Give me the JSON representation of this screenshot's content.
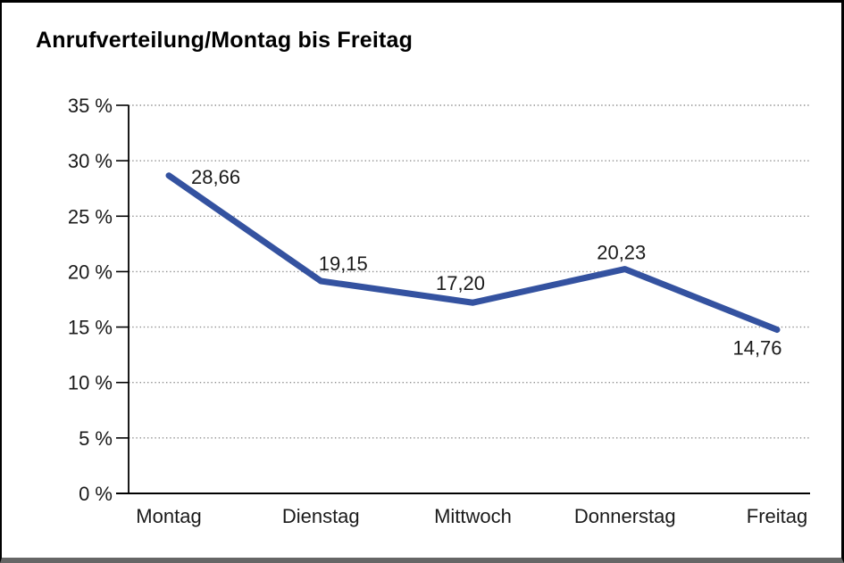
{
  "title": "Anrufverteilung/Montag bis Freitag",
  "chart_data": {
    "type": "line",
    "title": "Anrufverteilung/Montag bis Freitag",
    "categories": [
      "Montag",
      "Dienstag",
      "Mittwoch",
      "Donnerstag",
      "Freitag"
    ],
    "values": [
      28.66,
      19.15,
      17.2,
      20.23,
      14.76
    ],
    "value_labels": [
      "28,66",
      "19,15",
      "17,20",
      "20,23",
      "14,76"
    ],
    "xlabel": "",
    "ylabel": "",
    "ylim": [
      0,
      35
    ],
    "ytick_step": 5,
    "ytick_labels": [
      "0 %",
      "5 %",
      "10 %",
      "15 %",
      "20 %",
      "25 %",
      "30 %",
      "35 %"
    ],
    "grid": "horizontal-dotted",
    "legend_position": "none",
    "line_color": "#3452a0",
    "grid_color": "#8f8f8f",
    "axis_color": "#000000",
    "text_color": "#1a1a1a"
  }
}
